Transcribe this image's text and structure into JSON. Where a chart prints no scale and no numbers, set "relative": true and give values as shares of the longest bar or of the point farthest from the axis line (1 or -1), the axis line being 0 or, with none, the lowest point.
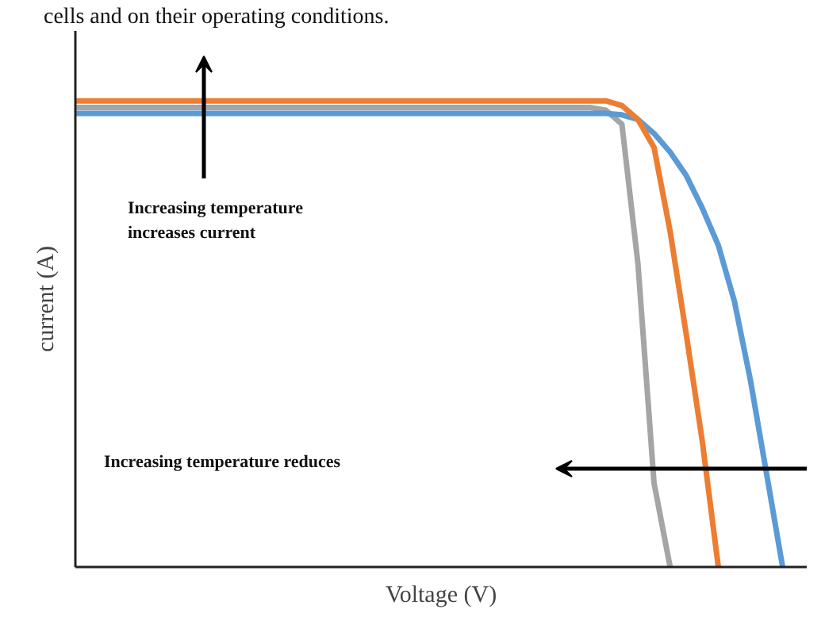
{
  "chart_data": {
    "type": "line",
    "relative": true,
    "xlabel": "Voltage (V)",
    "ylabel": "current (A)",
    "marker": "none",
    "line_style": "solid",
    "categories": [
      null,
      null,
      null,
      null,
      null,
      null,
      null,
      null,
      null,
      null,
      null,
      null,
      null,
      null,
      null,
      null,
      null,
      null,
      null,
      null,
      null,
      null,
      null,
      null,
      null,
      null,
      null,
      null,
      null,
      null,
      null,
      null,
      null,
      null,
      null,
      null,
      null,
      null,
      null,
      null,
      null,
      null,
      null,
      null,
      null,
      null
    ],
    "series": [
      {
        "color": "#a5a5a5",
        "values": [
          0.986,
          0.986,
          0.986,
          0.986,
          0.986,
          0.986,
          0.986,
          0.986,
          0.986,
          0.986,
          0.986,
          0.986,
          0.986,
          0.986,
          0.986,
          0.986,
          0.986,
          0.986,
          0.986,
          0.986,
          0.986,
          0.986,
          0.986,
          0.986,
          0.986,
          0.986,
          0.986,
          0.986,
          0.986,
          0.986,
          0.986,
          0.986,
          0.986,
          0.98,
          0.95,
          0.65,
          0.18,
          0.0,
          null,
          null,
          null,
          null,
          null,
          null,
          null,
          null
        ]
      },
      {
        "color": "#5b9bd5",
        "values": [
          0.973,
          0.973,
          0.973,
          0.973,
          0.973,
          0.973,
          0.973,
          0.973,
          0.973,
          0.973,
          0.973,
          0.973,
          0.973,
          0.973,
          0.973,
          0.973,
          0.973,
          0.973,
          0.973,
          0.973,
          0.973,
          0.973,
          0.973,
          0.973,
          0.973,
          0.973,
          0.973,
          0.973,
          0.973,
          0.973,
          0.973,
          0.973,
          0.973,
          0.973,
          0.97,
          0.96,
          0.93,
          0.89,
          0.84,
          0.77,
          0.69,
          0.57,
          0.4,
          0.2,
          0.0,
          null
        ]
      },
      {
        "color": "#ed7d31",
        "values": [
          1.0,
          1.0,
          1.0,
          1.0,
          1.0,
          1.0,
          1.0,
          1.0,
          1.0,
          1.0,
          1.0,
          1.0,
          1.0,
          1.0,
          1.0,
          1.0,
          1.0,
          1.0,
          1.0,
          1.0,
          1.0,
          1.0,
          1.0,
          1.0,
          1.0,
          1.0,
          1.0,
          1.0,
          1.0,
          1.0,
          1.0,
          1.0,
          1.0,
          1.0,
          0.99,
          0.96,
          0.9,
          0.72,
          0.5,
          0.27,
          0.0,
          null,
          null,
          null,
          null,
          null
        ]
      }
    ],
    "annotations": [
      "cells and on their operating conditions.",
      "Increasing temperature\nincreases current",
      "Increasing temperature reduces"
    ]
  }
}
